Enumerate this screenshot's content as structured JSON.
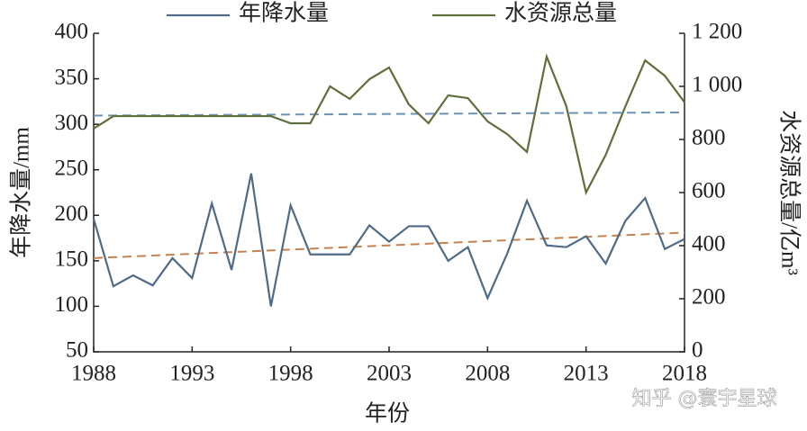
{
  "chart_data": {
    "type": "line",
    "x_label": "年份",
    "y_label": "年降水量/mm",
    "y2_label": "水资源总量/亿m³",
    "x": [
      1988,
      1989,
      1990,
      1991,
      1992,
      1993,
      1994,
      1995,
      1996,
      1997,
      1998,
      1999,
      2000,
      2001,
      2002,
      2003,
      2004,
      2005,
      2006,
      2007,
      2008,
      2009,
      2010,
      2011,
      2012,
      2013,
      2014,
      2015,
      2016,
      2017,
      2018
    ],
    "series": [
      {
        "name": "年降水量",
        "color": "#4f6b88",
        "axis": "y",
        "values": [
          196,
          122,
          134,
          123,
          153,
          131,
          213,
          140,
          246,
          100,
          211,
          157,
          157,
          157,
          189,
          171,
          188,
          188,
          150,
          165,
          109,
          158,
          216,
          167,
          165,
          177,
          147,
          194,
          219,
          163,
          174
        ]
      },
      {
        "name": "水资源总量",
        "color": "#5f6f3c",
        "axis": "y2",
        "values": [
          841,
          888,
          888,
          888,
          888,
          888,
          888,
          888,
          888,
          888,
          861,
          861,
          1000,
          953,
          1027,
          1071,
          932,
          861,
          966,
          956,
          868,
          820,
          753,
          1112,
          925,
          600,
          742,
          925,
          1098,
          1040,
          940
        ]
      }
    ],
    "trends": [
      {
        "color": "#6f93b5",
        "axis": "y2",
        "values": [
          890,
          902
        ]
      },
      {
        "color": "#c8814f",
        "axis": "y",
        "values": [
          153,
          181
        ]
      }
    ],
    "xlim": [
      1988,
      2018
    ],
    "xticks": [
      1988,
      1993,
      1998,
      2003,
      2008,
      2013,
      2018
    ],
    "ylim": [
      50,
      400
    ],
    "yticks": [
      50,
      100,
      150,
      200,
      250,
      300,
      350,
      400
    ],
    "y2lim": [
      0,
      1200
    ],
    "y2ticks": [
      0,
      200,
      400,
      600,
      800,
      {
        "value": 1000,
        "label": "1 000"
      },
      {
        "value": 1200,
        "label": "1 200"
      }
    ],
    "watermark": "知乎 @寰宇星球"
  }
}
